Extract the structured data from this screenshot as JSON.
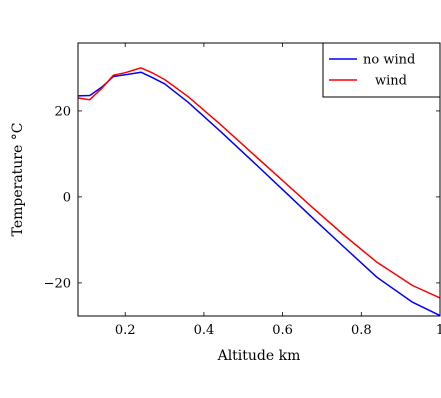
{
  "chart_data": {
    "type": "line",
    "title": "",
    "xlabel": "Altitude km",
    "ylabel": "Temperature °C",
    "xlim": [
      0.08,
      1.0
    ],
    "ylim": [
      -27.7,
      35.8
    ],
    "grid": false,
    "legend_position": "top-right",
    "x_ticks": [
      {
        "value": 0.2,
        "label": "0.2"
      },
      {
        "value": 0.4,
        "label": "0.4"
      },
      {
        "value": 0.6,
        "label": "0.6"
      },
      {
        "value": 0.8,
        "label": "0.8"
      },
      {
        "value": 1.0,
        "label": "1"
      }
    ],
    "y_ticks": [
      {
        "value": -20,
        "label": "−20"
      },
      {
        "value": 0,
        "label": "0"
      },
      {
        "value": 20,
        "label": "20"
      }
    ],
    "series": [
      {
        "name": "no wind",
        "color": "#0000ff",
        "x": [
          0.08,
          0.11,
          0.14,
          0.17,
          0.2,
          0.24,
          0.27,
          0.3,
          0.36,
          0.44,
          0.52,
          0.6,
          0.68,
          0.76,
          0.84,
          0.93,
          1.0
        ],
        "y": [
          23.5,
          23.6,
          25.5,
          28.0,
          28.4,
          29.0,
          27.7,
          26.3,
          22.0,
          15.4,
          8.6,
          1.7,
          -5.2,
          -12.0,
          -18.7,
          -24.5,
          -27.6
        ]
      },
      {
        "name": "wind",
        "color": "#ff0000",
        "x": [
          0.08,
          0.11,
          0.14,
          0.17,
          0.2,
          0.24,
          0.27,
          0.3,
          0.36,
          0.44,
          0.52,
          0.6,
          0.68,
          0.76,
          0.84,
          0.93,
          1.0
        ],
        "y": [
          23.0,
          22.6,
          25.2,
          28.3,
          28.9,
          30.0,
          28.8,
          27.3,
          23.3,
          17.0,
          10.4,
          3.8,
          -2.8,
          -9.2,
          -15.2,
          -20.6,
          -23.5
        ]
      }
    ]
  }
}
